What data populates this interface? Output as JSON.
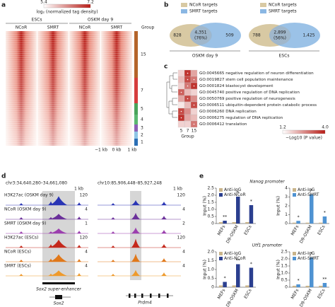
{
  "panels": {
    "a": {
      "label": "a",
      "colorbar": {
        "min": "5.4",
        "max": "7.2",
        "title": "log₂ (normalized tag density)"
      },
      "conditions": [
        "ESCs",
        "OSKM day 9"
      ],
      "columns": [
        "NCoR",
        "SMRT",
        "NCoR",
        "SMRT"
      ],
      "group_title": "Group",
      "groups": [
        "15",
        "7",
        "5",
        "4",
        "3",
        "2",
        "1"
      ],
      "axis": [
        "−1 kb",
        "0 kb",
        "1 kb"
      ]
    },
    "b": {
      "label": "b",
      "venns": [
        {
          "legend": [
            "NCoR targets",
            "SMRT targets"
          ],
          "left": "828",
          "overlap": "4,351",
          "overlap_pct": "(76%)",
          "right": "509",
          "title": "OSKM day 9"
        },
        {
          "legend": [
            "NCoR targets",
            "SMRT targets"
          ],
          "left": "788",
          "overlap": "2,899",
          "overlap_pct": "(56%)",
          "right": "1,425",
          "title": "ESCs"
        }
      ]
    },
    "c": {
      "label": "c",
      "terms": [
        "GO:0045665 negative regulation of neuron differentiation",
        "GO:0019827 stem cell population maintenance",
        "GO:0001824 blastocyst development",
        "GO:0045740 positive regulation of DNA replication",
        "GO:0050769 positive regulation of neurogenesis",
        "GO:0006511 ubiquitin-dependent protein catabolic process",
        "GO:0006260 DNA replication",
        "GO:0006275 regulation of DNA replication",
        "GO:0006412 translation"
      ],
      "groups": [
        "5",
        "7",
        "15"
      ],
      "group_title": "Group",
      "colorbar": {
        "min": "1.2",
        "max": "4.0",
        "title": "−Log10 (P value)"
      }
    },
    "d": {
      "label": "d",
      "regions": [
        {
          "coord": "chr3:34,640,280–34,661,080",
          "scale": "1 kb",
          "annotation": "Sox2 super-enhancer",
          "gene": "Sox2"
        },
        {
          "coord": "chr10:85,906,448–85,927,248",
          "scale": "1 kb",
          "gene": "Prdm4"
        }
      ],
      "tracks": [
        {
          "name": "H3K27ac (OSKM day 9)",
          "color": "#2a35b5",
          "scales": [
            "120",
            "120"
          ]
        },
        {
          "name": "NCoR (OSKM day 9)",
          "color": "#6a2f9a",
          "scales": [
            "4",
            "4"
          ]
        },
        {
          "name": "SMRT (OSKM day 9)",
          "color": "#9b3fae",
          "scales": [
            "1",
            "2"
          ]
        },
        {
          "name": "H3K27ac (ESCs)",
          "color": "#c4281c",
          "scales": [
            "120",
            "120"
          ]
        },
        {
          "name": "NCoR (ESCs)",
          "color": "#e0781a",
          "scales": [
            "4",
            "4"
          ]
        },
        {
          "name": "SMRT (ESCs)",
          "color": "#ee9a2c",
          "scales": [
            "4",
            "4"
          ]
        }
      ]
    },
    "e": {
      "label": "e",
      "titles": [
        "Nanog promoter",
        "Utf1 promoter"
      ]
    }
  },
  "chart_data": [
    {
      "type": "bar",
      "y_label": "Input (%)",
      "categories": [
        "MEFs",
        "D9-OSKM",
        "ESCs"
      ],
      "series": [
        {
          "name": "Anti-IgG",
          "color": "#c9b48a",
          "values": [
            0.1,
            0.1,
            0.1
          ]
        },
        {
          "name": "Anti-NCoR",
          "color": "#2b3f8f",
          "values": [
            0.2,
            1.9,
            1.3
          ]
        }
      ],
      "significance": [
        "**",
        "*",
        "*"
      ],
      "ylim": [
        0,
        2.5
      ],
      "yticks": [
        0,
        0.5,
        {
          "value": 1,
          "label": "1.0"
        },
        1.5,
        {
          "value": 2,
          "label": "2.0"
        },
        2.5
      ]
    },
    {
      "type": "bar",
      "y_label": "Input (%)",
      "categories": [
        "MEFs",
        "D9-OSKM",
        "ESCs"
      ],
      "series": [
        {
          "name": "Anti-IgG",
          "color": "#c9b48a",
          "values": [
            0.1,
            0.1,
            0.1
          ]
        },
        {
          "name": "Anti-SMRT",
          "color": "#4f93d2",
          "values": [
            0.3,
            3.3,
            0.8
          ]
        }
      ],
      "significance": [
        "*",
        "*",
        "*"
      ],
      "ylim": [
        0,
        4
      ],
      "yticks": [
        0,
        1,
        2,
        3,
        4
      ]
    },
    {
      "type": "bar",
      "y_label": "Input (%)",
      "categories": [
        "MEFs",
        "D9-OSKM",
        "ESCs"
      ],
      "series": [
        {
          "name": "Anti-IgG",
          "color": "#c9b48a",
          "values": [
            0.1,
            0.1,
            0.1
          ]
        },
        {
          "name": "Anti-NCoR",
          "color": "#2b3f8f",
          "values": [
            0.3,
            1.3,
            1.1
          ]
        }
      ],
      "significance": [
        "*",
        "**",
        "*"
      ],
      "ylim": [
        0,
        2
      ],
      "yticks": [
        0,
        0.5,
        {
          "value": 1,
          "label": "1.0"
        },
        1.5,
        {
          "value": 2,
          "label": "2.0"
        }
      ]
    },
    {
      "type": "bar",
      "y_label": "Input (%)",
      "categories": [
        "MEFs",
        "D9-OSKM",
        "ESCs"
      ],
      "series": [
        {
          "name": "Anti-IgG",
          "color": "#c9b48a",
          "values": [
            0.1,
            0.1,
            0.1
          ]
        },
        {
          "name": "Anti-SMRT",
          "color": "#4f93d2",
          "values": [
            0.2,
            2.1,
            0.3
          ]
        }
      ],
      "significance": [
        "*",
        "*",
        "**"
      ],
      "ylim": [
        0,
        2.5
      ],
      "yticks": [
        0,
        0.5,
        {
          "value": 1,
          "label": "1.0"
        },
        1.5,
        {
          "value": 2,
          "label": "2.0"
        },
        2.5
      ]
    }
  ]
}
